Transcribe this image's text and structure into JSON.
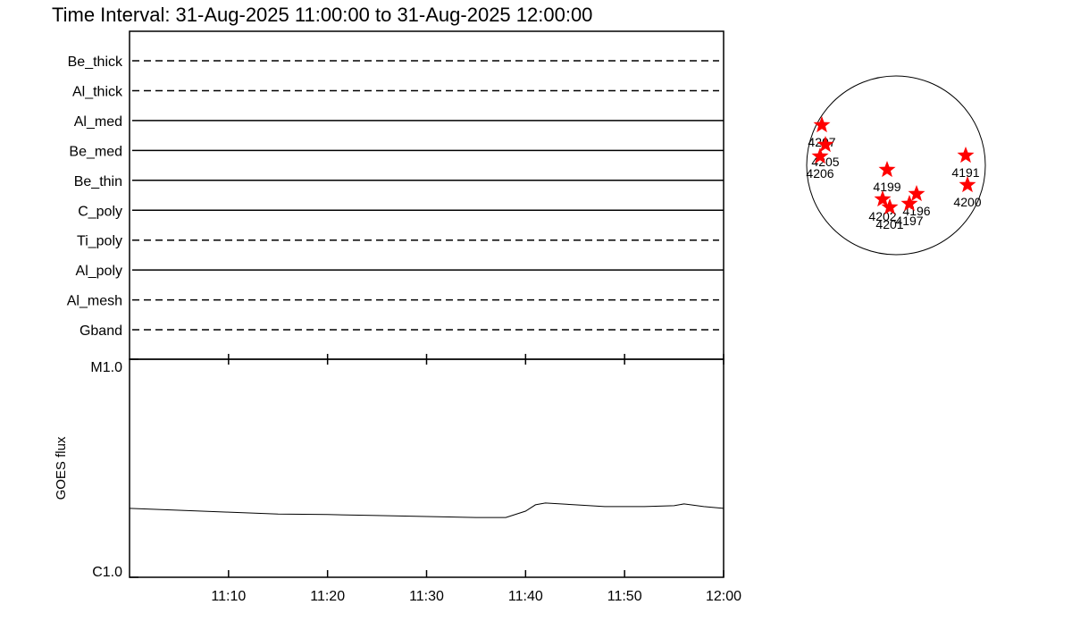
{
  "title": "Time Interval: 31-Aug-2025 11:00:00 to 31-Aug-2025 12:00:00",
  "chart_data": [
    {
      "type": "timeline",
      "categories": [
        "Be_thick",
        "Al_thick",
        "Al_med",
        "Be_med",
        "Be_thin",
        "C_poly",
        "Ti_poly",
        "Al_poly",
        "Al_mesh",
        "Gband"
      ],
      "line_styles": [
        "dashed",
        "dashed",
        "solid",
        "solid",
        "solid",
        "solid",
        "dashed",
        "solid",
        "dashed",
        "dashed"
      ],
      "color": "#000000"
    },
    {
      "type": "line",
      "y_label": "GOES flux",
      "log_scale": true,
      "color": "#000000",
      "x": [
        "11:00",
        "11:05",
        "11:10",
        "11:15",
        "11:20",
        "11:25",
        "11:30",
        "11:35",
        "11:38",
        "11:40",
        "11:41",
        "11:42",
        "11:45",
        "11:48",
        "11:52",
        "11:55",
        "11:56",
        "11:58",
        "12:00"
      ],
      "values": [
        2.07e-06,
        2.03e-06,
        1.99e-06,
        1.95e-06,
        1.94e-06,
        1.92e-06,
        1.9e-06,
        1.88e-06,
        1.88e-06,
        2.01e-06,
        2.15e-06,
        2.19e-06,
        2.15e-06,
        2.11e-06,
        2.11e-06,
        2.13e-06,
        2.17e-06,
        2.11e-06,
        2.07e-06
      ],
      "xlim": [
        "11:00",
        "12:00"
      ],
      "xticks": [
        "11:10",
        "11:20",
        "11:30",
        "11:40",
        "11:50",
        "12:00"
      ],
      "ylim": [
        1e-06,
        1e-05
      ],
      "yticks": [
        {
          "value": 1e-05,
          "label": "M1.0"
        },
        {
          "value": 1e-06,
          "label": "C1.0"
        }
      ]
    },
    {
      "type": "scatter",
      "color": "#ff0000",
      "labels": [
        "4207",
        "4205",
        "4206",
        "4199",
        "4191",
        "4200",
        "4196",
        "4197",
        "4202",
        "4201"
      ],
      "x": [
        -0.83,
        -0.79,
        -0.85,
        -0.1,
        0.78,
        0.8,
        0.23,
        0.15,
        -0.15,
        -0.07
      ],
      "y": [
        0.45,
        0.23,
        0.1,
        -0.05,
        0.11,
        -0.22,
        -0.32,
        -0.43,
        -0.38,
        -0.47
      ],
      "xlim": [
        -1,
        1
      ],
      "ylim": [
        -1,
        1
      ]
    }
  ]
}
